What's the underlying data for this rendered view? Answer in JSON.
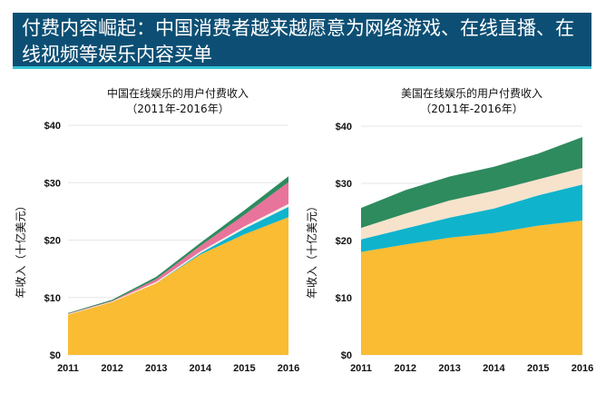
{
  "header": {
    "title": "付费内容崛起：中国消费者越来越愿意为网络游戏、在线直播、在线视频等娱乐内容买单"
  },
  "chart_data": [
    {
      "type": "area",
      "stacked": true,
      "title": "中国在线娱乐的用户付费收入",
      "subtitle": "（2011年-2016年）",
      "ylabel": "年收入（十亿美元）",
      "xlabel": "",
      "categories": [
        "2011",
        "2012",
        "2013",
        "2014",
        "2015",
        "2016"
      ],
      "ylim": [
        0,
        40
      ],
      "yticks": [
        "$0",
        "$10",
        "$20",
        "$30",
        "$40"
      ],
      "grid": true,
      "series": [
        {
          "color": "#f9bc33",
          "values": [
            7,
            9.2,
            12.5,
            17.5,
            21,
            24
          ]
        },
        {
          "color": "#10b3cc",
          "values": [
            0,
            0,
            0,
            0.2,
            1,
            1.8
          ]
        },
        {
          "color": "#f5f0ea",
          "values": [
            0.1,
            0.1,
            0.2,
            0.3,
            0.4,
            0.5
          ]
        },
        {
          "color": "#e8739b",
          "values": [
            0.1,
            0.1,
            0.5,
            1,
            2,
            3.8
          ]
        },
        {
          "color": "#2e8b5e",
          "values": [
            0.1,
            0.2,
            0.4,
            0.5,
            0.8,
            1
          ]
        }
      ]
    },
    {
      "type": "area",
      "stacked": true,
      "title": "美国在线娱乐的用户付费收入",
      "subtitle": "（2011年-2016年）",
      "ylabel": "年收入（十亿美元）",
      "xlabel": "",
      "categories": [
        "2011",
        "2012",
        "2013",
        "2014",
        "2015",
        "2016"
      ],
      "ylim": [
        0,
        40
      ],
      "yticks": [
        "$0",
        "$10",
        "$20",
        "$30",
        "$40"
      ],
      "grid": true,
      "series": [
        {
          "color": "#f9bc33",
          "values": [
            18,
            19.3,
            20.5,
            21.3,
            22.6,
            23.5
          ]
        },
        {
          "color": "#10b3cc",
          "values": [
            2.2,
            2.8,
            3.5,
            4.3,
            5.3,
            6.3
          ]
        },
        {
          "color": "#f7e3cc",
          "values": [
            2,
            2.6,
            3.0,
            3.1,
            2.8,
            2.9
          ]
        },
        {
          "color": "#2e8b5e",
          "values": [
            3.5,
            4.1,
            4.2,
            4.2,
            4.5,
            5.4
          ]
        }
      ]
    }
  ]
}
